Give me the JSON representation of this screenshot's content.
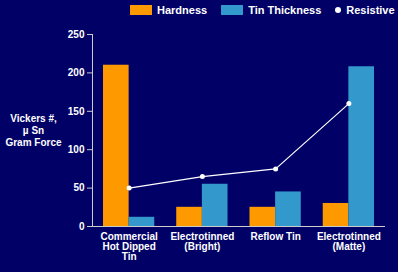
{
  "chart_data": {
    "type": "bar",
    "y_label": "Vickers #,\nµ Sn\nGram Force",
    "categories": [
      "Commercial Hot Dipped Tin",
      "Electrotinned (Bright)",
      "Reflow Tin",
      "Electrotinned (Matte)"
    ],
    "series": [
      {
        "name": "Hardness",
        "color": "#ff9900",
        "values": [
          210,
          25,
          25,
          30
        ]
      },
      {
        "name": "Tin Thickness",
        "color": "#3399cc",
        "values": [
          12,
          55,
          45,
          208
        ]
      },
      {
        "name": "Resistive Force",
        "type": "line",
        "color": "#ffffff",
        "marker": "circle",
        "values": [
          50,
          65,
          75,
          160
        ]
      }
    ],
    "ylim": [
      0,
      250
    ],
    "yticks": [
      0,
      50,
      100,
      150,
      200,
      250
    ],
    "grid": false,
    "legend": "top"
  }
}
